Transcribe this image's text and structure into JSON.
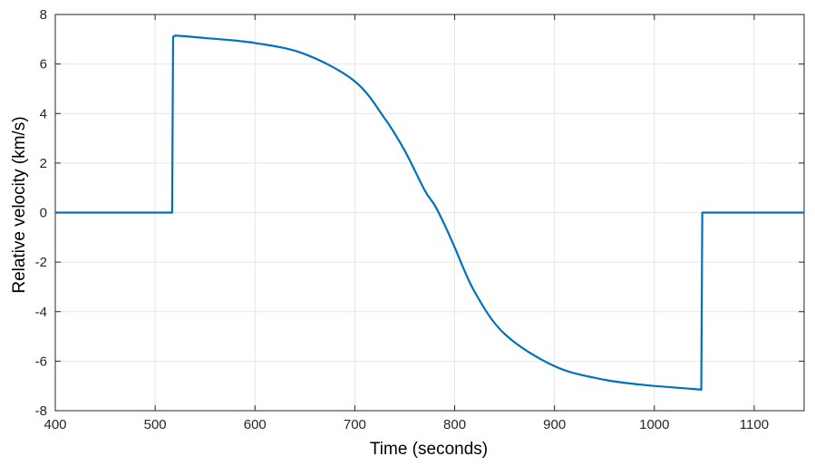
{
  "chart_data": {
    "type": "line",
    "xlabel": "Time (seconds)",
    "ylabel": "Relative velocity (km/s)",
    "xlim": [
      400,
      1150
    ],
    "ylim": [
      -8,
      8
    ],
    "xticks": [
      400,
      500,
      600,
      700,
      800,
      900,
      1000,
      1100
    ],
    "yticks": [
      -8,
      -6,
      -4,
      -2,
      0,
      2,
      4,
      6,
      8
    ],
    "xtick_labels": [
      "400",
      "500",
      "600",
      "700",
      "800",
      "900",
      "1000",
      "1100"
    ],
    "ytick_labels": [
      "-8",
      "-6",
      "-4",
      "-2",
      "0",
      "2",
      "4",
      "6",
      "8"
    ],
    "grid": true,
    "line_color": "#0072BD",
    "series": [
      {
        "x": [
          400,
          517,
          518,
          520,
          550,
          600,
          650,
          700,
          730,
          750,
          770,
          780,
          790,
          800,
          820,
          850,
          900,
          950,
          1000,
          1047,
          1048,
          1050,
          1150
        ],
        "y": [
          0,
          0,
          7.1,
          7.15,
          7.05,
          6.85,
          6.4,
          5.3,
          3.8,
          2.5,
          0.9,
          0.3,
          -0.5,
          -1.4,
          -3.2,
          -4.9,
          -6.2,
          -6.75,
          -7.0,
          -7.15,
          0,
          0,
          0
        ]
      }
    ]
  }
}
